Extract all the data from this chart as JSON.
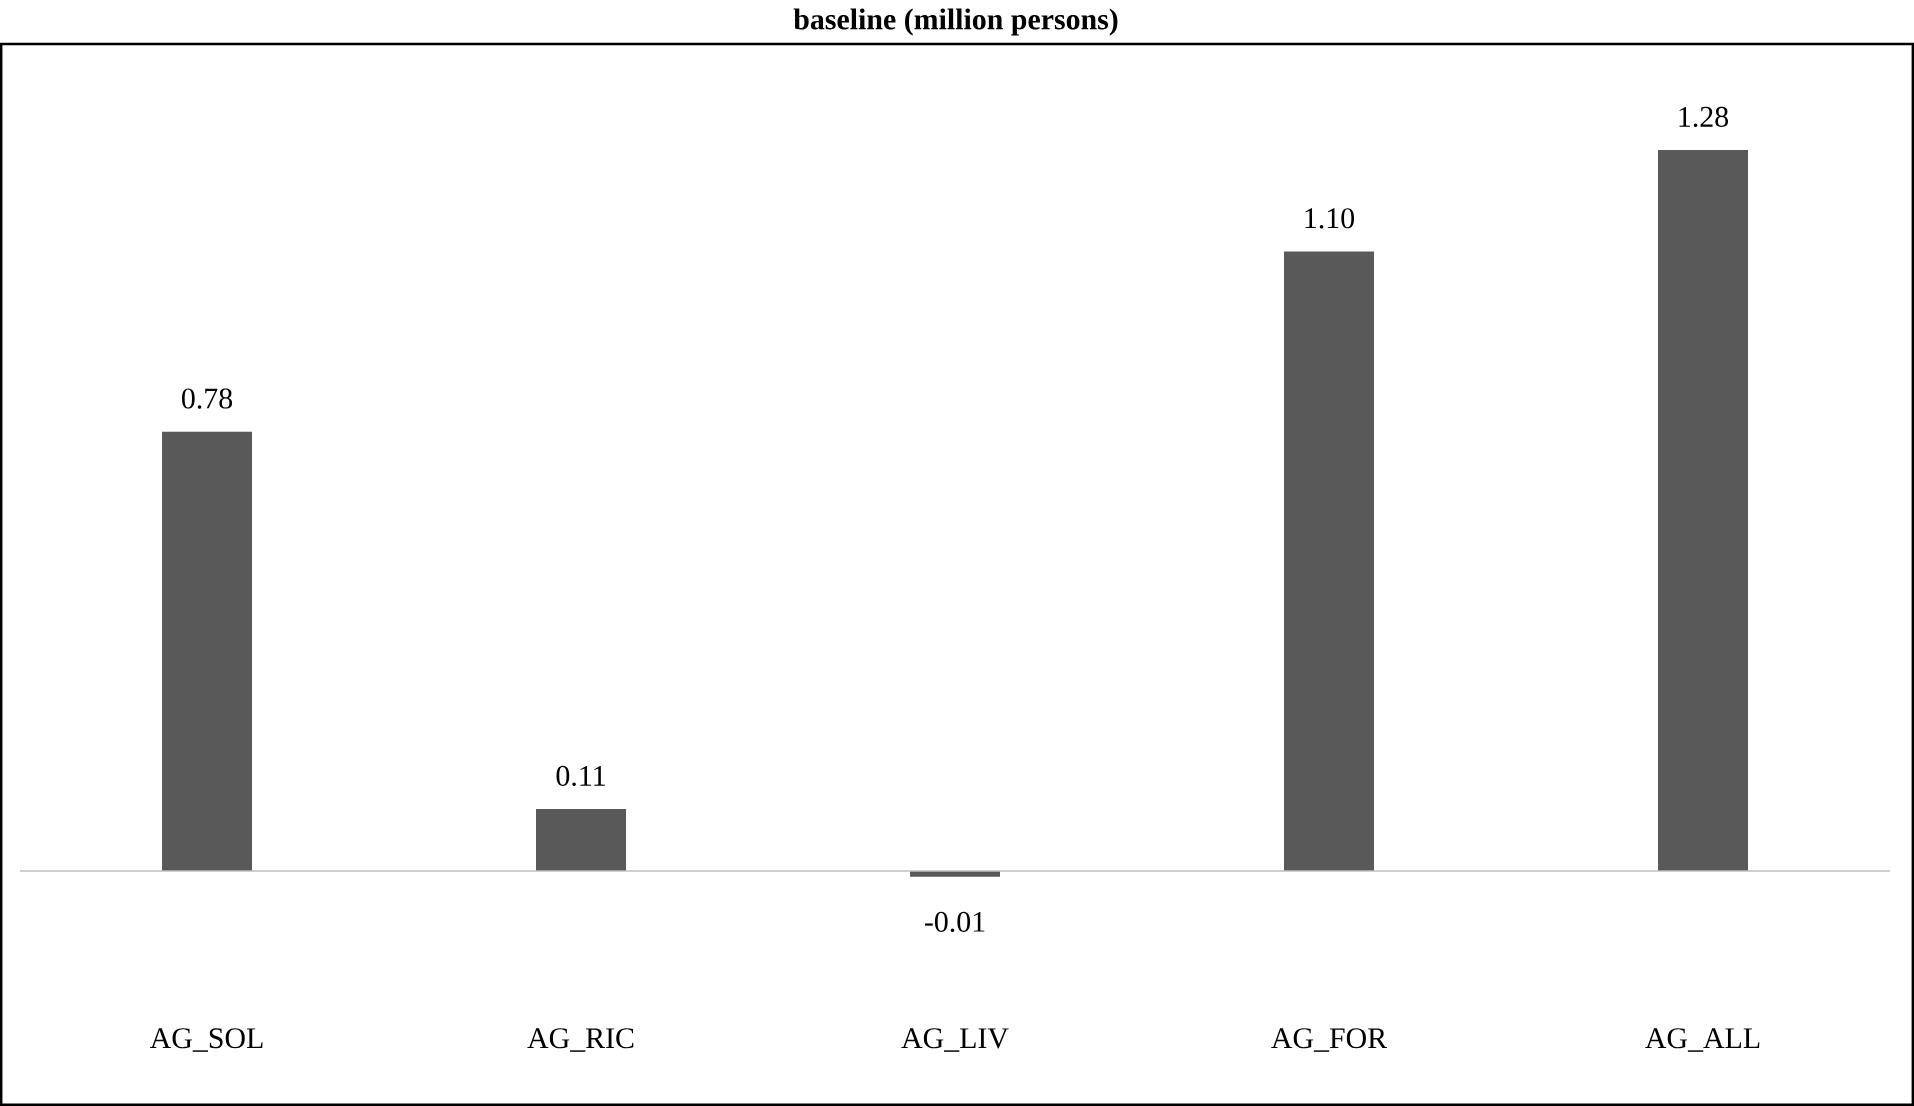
{
  "chart_data": {
    "type": "bar",
    "title": "baseline (million persons)",
    "categories": [
      "AG_SOL",
      "AG_RIC",
      "AG_LIV",
      "AG_FOR",
      "AG_ALL"
    ],
    "values": [
      0.78,
      0.11,
      -0.01,
      1.1,
      1.28
    ],
    "value_labels": [
      "0.78",
      "0.11",
      "-0.01",
      "1.10",
      "1.28"
    ],
    "color": "#595959"
  }
}
